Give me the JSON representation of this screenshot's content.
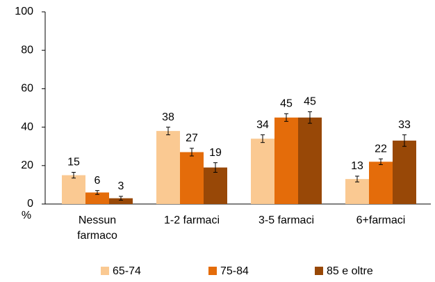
{
  "chart_data": {
    "type": "bar",
    "categories": [
      "Nessun farmaco",
      "1-2 farmaci",
      "3-5 farmaci",
      "6+farmaci"
    ],
    "series": [
      {
        "name": "65-74",
        "color": "#fac992",
        "values": [
          15,
          38,
          34,
          13
        ],
        "errors": [
          1.5,
          2,
          2,
          1.5
        ]
      },
      {
        "name": "75-84",
        "color": "#e46c0a",
        "values": [
          6,
          27,
          45,
          22
        ],
        "errors": [
          1,
          2,
          2,
          1.5
        ]
      },
      {
        "name": "85 e oltre",
        "color": "#984807",
        "values": [
          3,
          19,
          45,
          33
        ],
        "errors": [
          1,
          2.5,
          3,
          3
        ]
      }
    ],
    "ylabel": "%",
    "ylim": [
      0,
      100
    ],
    "yticks": [
      0,
      20,
      40,
      60,
      80,
      100
    ],
    "grid": false,
    "legend": "bottom"
  }
}
